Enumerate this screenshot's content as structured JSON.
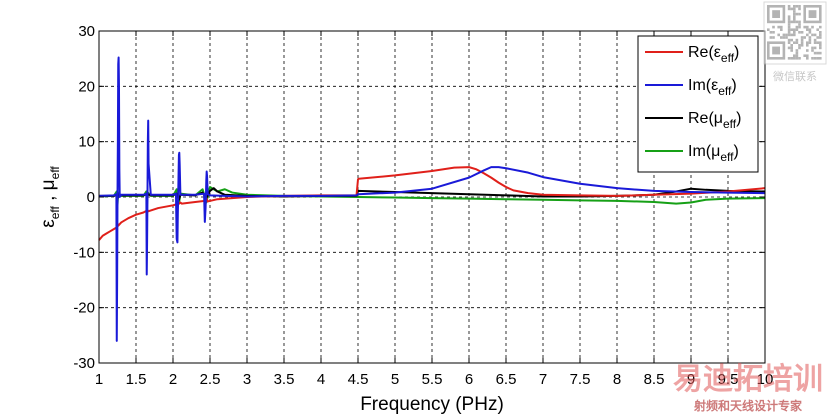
{
  "chart_data": {
    "type": "line",
    "title": "",
    "xlabel": "Frequency (PHz)",
    "ylabel": {
      "main": "ε",
      "sub1": "eff",
      "sep": " , ",
      "main2": "μ",
      "sub2": "eff"
    },
    "xlim": [
      1,
      10
    ],
    "ylim": [
      -30,
      30
    ],
    "xticks": [
      1,
      1.5,
      2,
      2.5,
      3,
      3.5,
      4,
      4.5,
      5,
      5.5,
      6,
      6.5,
      7,
      7.5,
      8,
      8.5,
      9,
      9.5,
      10
    ],
    "xtick_labels": [
      "1",
      "1.5",
      "2",
      "2.5",
      "3",
      "3.5",
      "4",
      "4.5",
      "5",
      "5.5",
      "6",
      "6.5",
      "7",
      "7.5",
      "8",
      "8.5",
      "9",
      "9.5",
      "10"
    ],
    "yticks": [
      -30,
      -20,
      -10,
      0,
      10,
      20,
      30
    ],
    "ytick_labels": [
      "-30",
      "-20",
      "-10",
      "0",
      "10",
      "20",
      "30"
    ],
    "grid": true,
    "grid_style": "dashed",
    "legend_position": "top-right",
    "series": [
      {
        "name": "Re(ε_eff)",
        "legend": {
          "prefix": "Re(",
          "symbol": "ε",
          "sub": "eff",
          "suffix": ")"
        },
        "color": "#e0201a",
        "x": [
          1.0,
          1.05,
          1.1,
          1.15,
          1.2,
          1.24,
          1.25,
          1.26,
          1.3,
          1.4,
          1.5,
          1.6,
          1.64,
          1.65,
          1.66,
          1.8,
          2.0,
          2.08,
          2.1,
          2.12,
          2.3,
          2.43,
          2.45,
          2.47,
          2.6,
          2.8,
          3.0,
          3.2,
          3.5,
          4.0,
          4.48,
          4.5,
          4.51,
          5.0,
          5.5,
          5.8,
          6.0,
          6.1,
          6.2,
          6.3,
          6.4,
          6.5,
          6.6,
          6.8,
          7.0,
          7.5,
          8.0,
          8.5,
          9.0,
          9.5,
          10.0
        ],
        "y": [
          -7.8,
          -7.0,
          -6.6,
          -6.2,
          -5.8,
          -5.5,
          -4.8,
          -5.2,
          -4.6,
          -3.8,
          -3.2,
          -2.8,
          -2.5,
          -2.2,
          -2.6,
          -2.0,
          -1.5,
          -1.2,
          -1.0,
          -1.2,
          -0.9,
          -0.7,
          -0.2,
          -0.8,
          -0.4,
          -0.2,
          0.0,
          0.1,
          0.2,
          0.3,
          0.3,
          3.2,
          3.3,
          3.9,
          4.7,
          5.3,
          5.4,
          5.0,
          4.3,
          3.5,
          2.6,
          1.8,
          1.2,
          0.7,
          0.4,
          0.3,
          0.2,
          0.4,
          0.6,
          1.0,
          1.6
        ]
      },
      {
        "name": "Im(ε_eff)",
        "legend": {
          "prefix": "Im(",
          "symbol": "ε",
          "sub": "eff",
          "suffix": ")"
        },
        "color": "#1a1ad8",
        "x": [
          1.0,
          1.2,
          1.235,
          1.24,
          1.245,
          1.25,
          1.255,
          1.26,
          1.265,
          1.27,
          1.275,
          1.28,
          1.3,
          1.6,
          1.64,
          1.645,
          1.65,
          1.655,
          1.66,
          1.665,
          1.67,
          1.7,
          2.0,
          2.04,
          2.05,
          2.06,
          2.065,
          2.07,
          2.075,
          2.08,
          2.085,
          2.09,
          2.1,
          2.13,
          2.3,
          2.42,
          2.43,
          2.44,
          2.445,
          2.45,
          2.455,
          2.46,
          2.47,
          2.5,
          2.7,
          3.0,
          3.5,
          4.0,
          4.48,
          4.5,
          5.0,
          5.5,
          6.0,
          6.2,
          6.3,
          6.4,
          6.5,
          6.8,
          7.0,
          7.5,
          8.0,
          8.5,
          9.0,
          9.5,
          10.0
        ],
        "y": [
          0.2,
          0.3,
          0.5,
          -26.0,
          -15.0,
          0.0,
          10.0,
          24.0,
          25.2,
          20.0,
          5.0,
          0.0,
          0.4,
          0.4,
          0.6,
          -14.0,
          -8.0,
          0.0,
          10.0,
          13.8,
          6.0,
          0.4,
          0.4,
          0.6,
          -7.6,
          -8.2,
          -3.0,
          0.0,
          4.0,
          7.6,
          8.0,
          6.0,
          0.4,
          0.4,
          0.4,
          0.6,
          -4.5,
          -2.0,
          0.0,
          3.0,
          4.6,
          3.8,
          0.5,
          0.3,
          0.2,
          0.1,
          0.2,
          0.2,
          0.3,
          0.5,
          0.8,
          1.5,
          3.5,
          4.8,
          5.4,
          5.4,
          5.2,
          4.4,
          3.6,
          2.4,
          1.6,
          1.1,
          0.9,
          0.8,
          0.7
        ]
      },
      {
        "name": "Re(μ_eff)",
        "legend": {
          "prefix": "Re(",
          "symbol": "μ",
          "sub": "eff",
          "suffix": ")"
        },
        "color": "#000000",
        "x": [
          1.0,
          1.2,
          1.24,
          1.25,
          1.26,
          1.3,
          1.6,
          1.64,
          1.65,
          1.66,
          1.7,
          2.0,
          2.05,
          2.08,
          2.1,
          2.3,
          2.4,
          2.45,
          2.5,
          2.55,
          2.6,
          2.7,
          3.0,
          3.5,
          4.0,
          4.48,
          4.5,
          5.0,
          5.5,
          6.0,
          6.5,
          7.0,
          7.5,
          8.0,
          8.5,
          8.8,
          9.0,
          9.2,
          9.5,
          10.0
        ],
        "y": [
          0.2,
          0.2,
          0.4,
          -0.4,
          0.5,
          0.3,
          0.3,
          0.5,
          -0.3,
          0.5,
          0.3,
          0.3,
          0.6,
          -0.5,
          0.4,
          0.3,
          0.8,
          -0.2,
          1.1,
          1.6,
          1.0,
          0.4,
          0.2,
          0.1,
          0.2,
          0.2,
          1.1,
          0.9,
          0.7,
          0.5,
          0.3,
          0.1,
          0.1,
          0.2,
          0.4,
          1.0,
          1.5,
          1.3,
          1.1,
          1.0
        ]
      },
      {
        "name": "Im(μ_eff)",
        "legend": {
          "prefix": "Im(",
          "symbol": "μ",
          "sub": "eff",
          "suffix": ")"
        },
        "color": "#16a016",
        "x": [
          1.0,
          1.2,
          1.24,
          1.25,
          1.26,
          1.3,
          1.6,
          1.64,
          1.65,
          1.66,
          1.7,
          2.0,
          2.05,
          2.08,
          2.1,
          2.3,
          2.4,
          2.45,
          2.5,
          2.6,
          2.7,
          2.8,
          3.0,
          3.5,
          4.0,
          4.5,
          5.0,
          5.5,
          6.0,
          6.5,
          7.0,
          7.5,
          8.0,
          8.5,
          8.8,
          9.0,
          9.2,
          9.5,
          10.0
        ],
        "y": [
          0.1,
          0.2,
          1.0,
          -1.4,
          0.8,
          0.2,
          0.2,
          1.0,
          -1.2,
          0.8,
          0.2,
          0.2,
          1.4,
          -1.2,
          0.6,
          0.3,
          1.4,
          -1.0,
          1.8,
          1.0,
          1.4,
          0.8,
          0.4,
          0.2,
          0.1,
          0.0,
          -0.1,
          -0.2,
          -0.3,
          -0.4,
          -0.5,
          -0.6,
          -0.7,
          -0.9,
          -1.2,
          -1.0,
          -0.5,
          -0.3,
          -0.2
        ]
      }
    ]
  },
  "watermark": {
    "qr_caption": "微信联系",
    "brand": "易迪拓培训",
    "brand_sub": "射频和天线设计专家"
  }
}
